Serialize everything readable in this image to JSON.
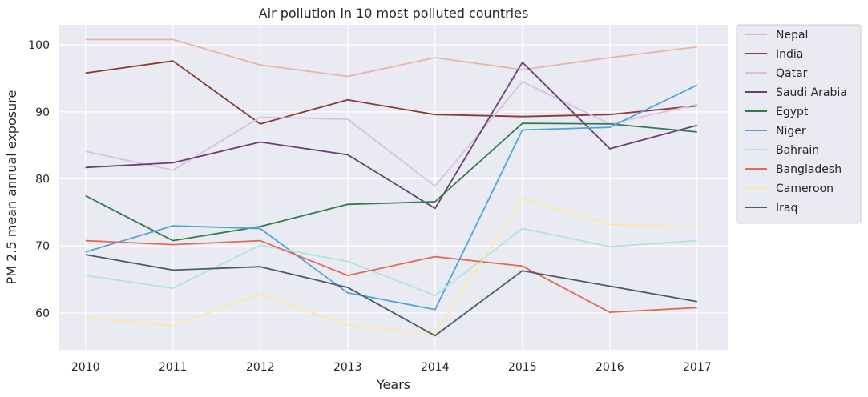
{
  "chart_data": {
    "type": "line",
    "title": "Air pollution in 10 most polluted countries",
    "xlabel": "Years",
    "ylabel": "PM 2.5 mean annual exposure",
    "x": [
      "2010",
      "2011",
      "2012",
      "2013",
      "2014",
      "2015",
      "2016",
      "2017"
    ],
    "xlim": [
      2009.7,
      2017.35
    ],
    "ylim": [
      54.5,
      103.0
    ],
    "yticks": [
      60,
      70,
      80,
      90,
      100
    ],
    "grid": true,
    "legend_position": "outside-right-top",
    "series": [
      {
        "name": "Nepal",
        "color": "#e8b4aa",
        "values": [
          100.8,
          100.8,
          97.0,
          95.3,
          98.1,
          96.3,
          98.1,
          99.7
        ]
      },
      {
        "name": "India",
        "color": "#8a3b32",
        "values": [
          95.8,
          97.6,
          88.2,
          91.8,
          89.6,
          89.3,
          89.6,
          90.9
        ]
      },
      {
        "name": "Qatar",
        "color": "#dbbde6",
        "values": [
          84.1,
          81.3,
          89.2,
          88.9,
          78.9,
          94.5,
          88.2,
          91.1
        ]
      },
      {
        "name": "Saudi Arabia",
        "color": "#6a3d78",
        "values": [
          81.7,
          82.4,
          85.5,
          83.6,
          75.6,
          97.4,
          84.5,
          88.0
        ]
      },
      {
        "name": "Egypt",
        "color": "#2e7d4d",
        "values": [
          77.5,
          70.8,
          72.9,
          76.2,
          76.6,
          88.3,
          88.2,
          87.0
        ]
      },
      {
        "name": "Niger",
        "color": "#4ca6dc",
        "values": [
          69.1,
          73.0,
          72.6,
          63.0,
          60.5,
          87.3,
          87.7,
          94.0
        ]
      },
      {
        "name": "Bahrain",
        "color": "#aee4dc",
        "values": [
          65.6,
          63.7,
          70.1,
          67.7,
          62.6,
          72.6,
          69.9,
          70.8
        ]
      },
      {
        "name": "Bangladesh",
        "color": "#e26a55",
        "values": [
          70.8,
          70.2,
          70.8,
          65.6,
          68.4,
          67.0,
          60.1,
          60.8
        ]
      },
      {
        "name": "Cameroon",
        "color": "#fce7a4",
        "values": [
          59.3,
          58.1,
          62.8,
          58.2,
          56.9,
          77.1,
          73.2,
          72.8
        ]
      },
      {
        "name": "Iraq",
        "color": "#4b5a6e",
        "values": [
          68.7,
          66.4,
          66.9,
          63.8,
          56.6,
          66.3,
          64.0,
          61.7
        ]
      }
    ]
  }
}
